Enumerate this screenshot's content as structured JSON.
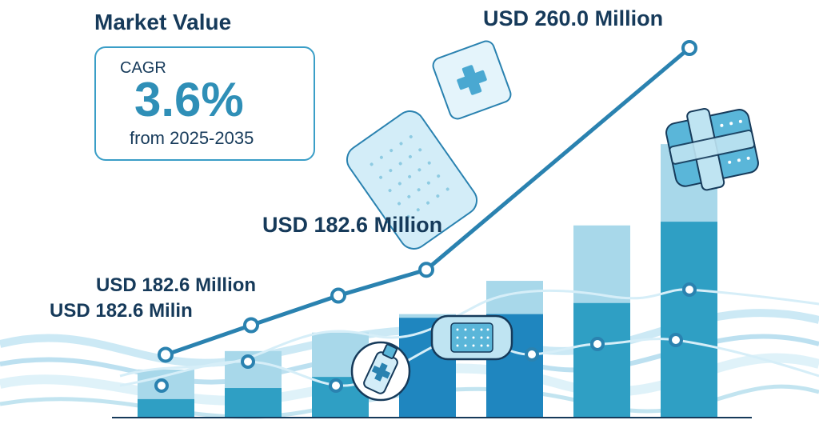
{
  "header": {
    "title": "Market Value"
  },
  "cagr": {
    "label": "CAGR",
    "value": "3.6%",
    "period": "from 2025-2035"
  },
  "annotations": {
    "top": "USD 260.0 Million",
    "mid": "USD 182.6 Million",
    "low1": "USD 182.6 Million",
    "low2": "USD 182.6 Milin"
  },
  "colors": {
    "bar_light": "#a8d8ea",
    "bar_dark": "#2f9fc4",
    "bar_blue": "#1f86bf",
    "line": "#2a82b0",
    "wave": "#9fd3ea",
    "text": "#163a5a"
  },
  "icons": [
    "bandage-pack-icon",
    "spray-bottle-icon",
    "plaster-icon",
    "bandage-cross-icon"
  ],
  "chart_data": {
    "type": "bar",
    "categories": [
      "1",
      "2",
      "3",
      "4",
      "5",
      "6",
      "7"
    ],
    "ylim": [
      0,
      100
    ],
    "series": [
      {
        "values": [
          13,
          18,
          23,
          28,
          37,
          52,
          74
        ],
        "role": "upper"
      },
      {
        "values": [
          5,
          8,
          11,
          27,
          28,
          31,
          53
        ],
        "role": "lower"
      }
    ],
    "line": {
      "values": [
        17,
        25,
        33,
        40,
        60,
        80,
        100
      ]
    },
    "grid": false,
    "legend": "none"
  }
}
